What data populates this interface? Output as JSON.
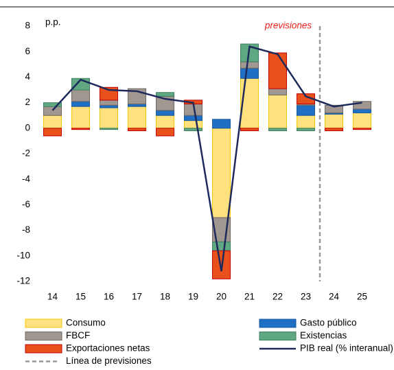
{
  "chart_data": {
    "type": "bar",
    "stacked": true,
    "y_unit_label": "p.p.",
    "annotation": "previsiones",
    "forecast_legend": "Línea de previsiones",
    "categories": [
      "14",
      "15",
      "16",
      "17",
      "18",
      "19",
      "20",
      "21",
      "22",
      "23",
      "24",
      "25"
    ],
    "series": [
      {
        "name": "Consumo",
        "color": "#ffe17f",
        "values": [
          1.0,
          1.7,
          1.6,
          1.7,
          1.0,
          0.6,
          -7.0,
          3.9,
          2.6,
          1.0,
          1.1,
          1.2
        ]
      },
      {
        "name": "Gasto público",
        "color": "#1f6fc5",
        "values": [
          0,
          0.4,
          0.2,
          0.2,
          0.4,
          0.4,
          0.7,
          0.8,
          0,
          0.8,
          0.1,
          0.3
        ]
      },
      {
        "name": "FBCF",
        "color": "#a09890",
        "values": [
          0.7,
          0.9,
          0.4,
          1.2,
          1.1,
          0.9,
          -1.9,
          0.5,
          0.5,
          0.1,
          0.6,
          0.6
        ]
      },
      {
        "name": "Existencias",
        "color": "#5fa882",
        "values": [
          0.3,
          0.9,
          -0.1,
          0,
          0.3,
          -0.2,
          -0.7,
          1.4,
          -0.2,
          -0.2,
          0,
          0
        ]
      },
      {
        "name": "Exportaciones netas",
        "color": "#e8501c",
        "values": [
          -0.6,
          -0.1,
          1.0,
          -0.2,
          -0.6,
          0.3,
          -2.2,
          -0.2,
          2.8,
          0.8,
          -0.2,
          -0.1
        ]
      }
    ],
    "line_series": {
      "name": "PIB real (% interanual)",
      "color": "#1f2a5c",
      "values": [
        1.4,
        3.8,
        3.0,
        2.9,
        2.3,
        2.0,
        -11.2,
        6.4,
        5.8,
        2.5,
        1.7,
        2.0
      ]
    },
    "ylim": [
      -12,
      8
    ],
    "yticks": [
      -12,
      -10,
      -8,
      -6,
      -4,
      -2,
      0,
      2,
      4,
      6,
      8
    ],
    "grid": false
  }
}
